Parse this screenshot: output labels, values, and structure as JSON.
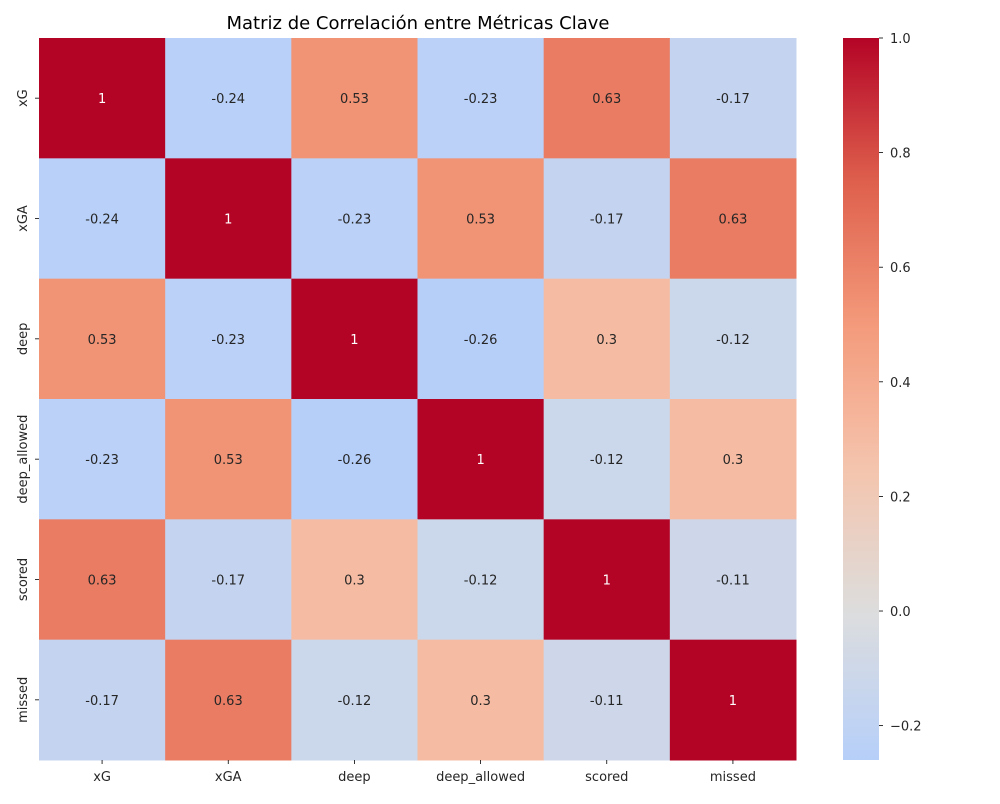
{
  "chart_data": {
    "type": "heatmap",
    "title": "Matriz de Correlación entre Métricas Clave",
    "x_categories": [
      "xG",
      "xGA",
      "deep",
      "deep_allowed",
      "scored",
      "missed"
    ],
    "y_categories": [
      "xG",
      "xGA",
      "deep",
      "deep_allowed",
      "scored",
      "missed"
    ],
    "values": [
      [
        1,
        -0.24,
        0.53,
        -0.23,
        0.63,
        -0.17
      ],
      [
        -0.24,
        1,
        -0.23,
        0.53,
        -0.17,
        0.63
      ],
      [
        0.53,
        -0.23,
        1,
        -0.26,
        0.3,
        -0.12
      ],
      [
        -0.23,
        0.53,
        -0.26,
        1,
        -0.12,
        0.3
      ],
      [
        0.63,
        -0.17,
        0.3,
        -0.12,
        1,
        -0.11
      ],
      [
        -0.17,
        0.63,
        -0.12,
        0.3,
        -0.11,
        1
      ]
    ],
    "value_labels": [
      [
        "1",
        "-0.24",
        "0.53",
        "-0.23",
        "0.63",
        "-0.17"
      ],
      [
        "-0.24",
        "1",
        "-0.23",
        "0.53",
        "-0.17",
        "0.63"
      ],
      [
        "0.53",
        "-0.23",
        "1",
        "-0.26",
        "0.3",
        "-0.12"
      ],
      [
        "-0.23",
        "0.53",
        "-0.26",
        "1",
        "-0.12",
        "0.3"
      ],
      [
        "0.63",
        "-0.17",
        "0.3",
        "-0.12",
        "1",
        "-0.11"
      ],
      [
        "-0.17",
        "0.63",
        "-0.12",
        "0.3",
        "-0.11",
        "1"
      ]
    ],
    "colormap": "coolwarm",
    "center": 0,
    "vmin": -0.26,
    "vmax": 1.0,
    "colorbar_ticks": [
      1.0,
      0.8,
      0.6,
      0.4,
      0.2,
      0.0,
      -0.2
    ],
    "colorbar_tick_labels": [
      "1.0",
      "0.8",
      "0.6",
      "0.4",
      "0.2",
      "0.0",
      "−0.2"
    ],
    "annotation_color_dark": "#262626",
    "annotation_color_light": "#ffffff"
  }
}
